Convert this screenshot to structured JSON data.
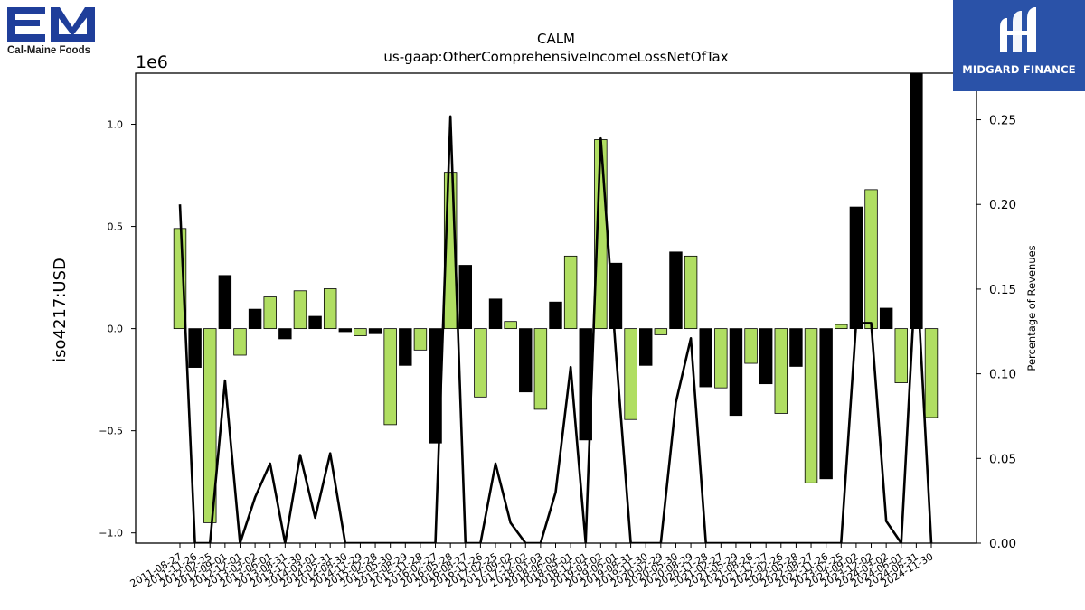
{
  "brand_left": {
    "name": "Cal-Maine Foods",
    "colors": {
      "primary": "#1f3e9a"
    }
  },
  "brand_right": {
    "name": "MIDGARD FINANCE",
    "colors": {
      "background": "#2a52a8"
    }
  },
  "chart_data": {
    "type": "bar",
    "title": "CALM",
    "subtitle": "us-gaap:OtherComprehensiveIncomeLossNetOfTax",
    "ylabel": "iso4217:USD",
    "y2label": "Percentage of Revenues",
    "y_scale_label": "1e6",
    "ylim": [
      -1.05,
      1.25
    ],
    "y2lim": [
      0.0,
      0.2775
    ],
    "yticks": [
      "1.0",
      "0.5",
      "0.0",
      "−0.5",
      "−1.0"
    ],
    "yticks_values": [
      1.0,
      0.5,
      0.0,
      -0.5,
      -1.0
    ],
    "y2ticks": [
      "0.25",
      "0.20",
      "0.15",
      "0.10",
      "0.05",
      "0.00"
    ],
    "y2ticks_values": [
      0.25,
      0.2,
      0.15,
      0.1,
      0.05,
      0.0
    ],
    "categories": [
      "2011-08-27",
      "2011-11-26",
      "2012-02-25",
      "2012-09-01",
      "2012-12-01",
      "2013-03-02",
      "2013-06-01",
      "2013-08-31",
      "2013-11-30",
      "2014-03-01",
      "2014-05-31",
      "2014-08-30",
      "2014-11-29",
      "2015-02-28",
      "2015-05-30",
      "2015-08-29",
      "2015-11-28",
      "2016-02-27",
      "2016-05-28",
      "2016-08-27",
      "2016-11-26",
      "2017-02-25",
      "2017-09-02",
      "2017-12-02",
      "2018-03-03",
      "2018-06-02",
      "2018-09-01",
      "2018-12-01",
      "2019-03-02",
      "2019-06-01",
      "2019-08-31",
      "2019-11-30",
      "2020-02-29",
      "2020-05-30",
      "2020-08-29",
      "2020-11-28",
      "2021-02-27",
      "2021-05-29",
      "2021-08-28",
      "2021-11-27",
      "2022-02-26",
      "2022-05-28",
      "2022-08-27",
      "2022-11-26",
      "2023-02-25",
      "2023-09-02",
      "2023-12-02",
      "2024-03-02",
      "2024-06-01",
      "2024-08-31",
      "2024-11-30"
    ],
    "series": [
      {
        "type": "bar",
        "values": [
          0.49,
          -0.19,
          -0.95,
          0.26,
          -0.13,
          0.095,
          0.155,
          -0.05,
          0.185,
          0.06,
          0.195,
          -0.015,
          -0.035,
          -0.025,
          -0.47,
          -0.18,
          -0.105,
          -0.56,
          0.765,
          0.31,
          -0.335,
          0.145,
          0.035,
          -0.31,
          -0.395,
          0.13,
          0.355,
          -0.545,
          0.925,
          0.32,
          -0.445,
          -0.18,
          -0.03,
          0.375,
          0.355,
          -0.285,
          -0.29,
          -0.425,
          -0.17,
          -0.27,
          -0.415,
          -0.185,
          -0.755,
          -0.735,
          0.02,
          0.595,
          0.68,
          0.1,
          -0.265,
          1.27,
          -0.435
        ],
        "colors": {
          "positive": "#b0de62",
          "negative": "#000000"
        }
      },
      {
        "type": "line",
        "axis": "y2",
        "color": "#000000",
        "values": [
          0.2,
          0.0,
          0.0,
          0.096,
          0.0,
          0.027,
          0.047,
          0.0,
          0.052,
          0.015,
          0.053,
          0.0,
          0.0,
          0.0,
          0.0,
          0.0,
          0.0,
          0.0,
          0.252,
          0.0,
          0.0,
          0.047,
          0.012,
          0.0,
          0.0,
          0.03,
          0.104,
          0.0,
          0.239,
          0.114,
          0.0,
          0.0,
          0.0,
          0.083,
          0.121,
          0.0,
          0.0,
          0.0,
          0.0,
          0.0,
          0.0,
          0.0,
          0.0,
          0.0,
          0.0,
          0.13,
          0.13,
          0.013,
          0.0,
          0.165,
          0.0
        ]
      }
    ],
    "grid": false
  }
}
